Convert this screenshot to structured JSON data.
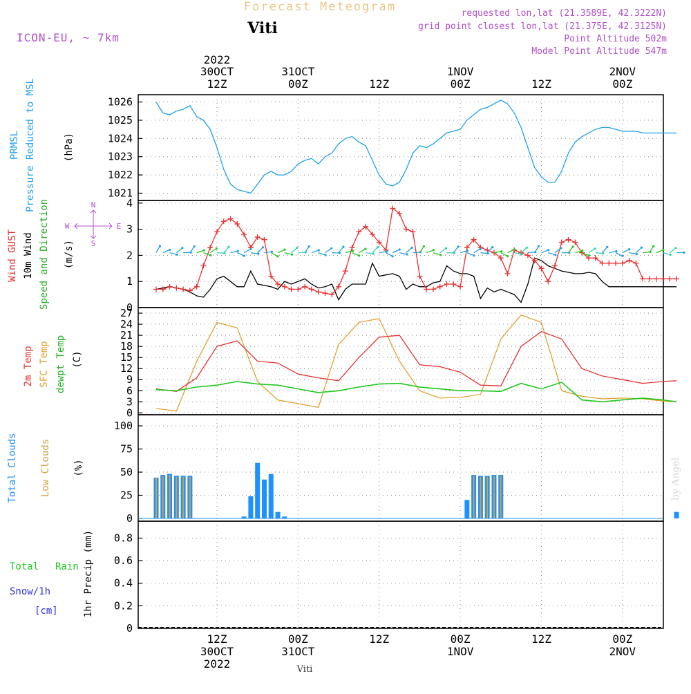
{
  "header": {
    "title": "Forecast Meteogram",
    "station": "Viti",
    "model": "ICON-EU, ~ 7km",
    "requested": "requested lon,lat (21.3589E, 42.3222N)",
    "gridpoint": "grid point closest lon,lat (21.375E, 42.3125N)",
    "point_alt": "Point Altitude 502m",
    "model_alt": "Model Point Altitude 547m",
    "watermark": "by Angel",
    "footer_station": "Viti"
  },
  "time_axis": {
    "top_year": "2022",
    "labels": [
      {
        "line1": "30OCT",
        "line2": "12Z"
      },
      {
        "line1": "31OCT",
        "line2": "00Z"
      },
      {
        "line1": "",
        "line2": "12Z"
      },
      {
        "line1": "1NOV",
        "line2": "00Z"
      },
      {
        "line1": "",
        "line2": "12Z"
      },
      {
        "line1": "2NOV",
        "line2": "00Z"
      }
    ],
    "bottom_labels": [
      {
        "hour": "12Z",
        "date": "30OCT",
        "year": "2022"
      },
      {
        "hour": "00Z",
        "date": "31OCT",
        "year": ""
      },
      {
        "hour": "12Z",
        "date": "",
        "year": ""
      },
      {
        "hour": "00Z",
        "date": "1NOV",
        "year": ""
      },
      {
        "hour": "12Z",
        "date": "",
        "year": ""
      },
      {
        "hour": "00Z",
        "date": "2NOV",
        "year": ""
      }
    ]
  },
  "panel_labels": {
    "pressure": {
      "a": "PRMSL",
      "b": "Pressure Reduced to MSL",
      "unit": "(hPa)"
    },
    "wind": {
      "a": "Wind GUST",
      "b": "10m Wind",
      "c": "Speed and Direction",
      "unit": "(m/s)",
      "compass_n": "N",
      "compass_s": "S",
      "compass_w": "W",
      "compass_e": "E"
    },
    "temp": {
      "a": "2m Temp",
      "b": "SFC Temp",
      "c": "dewpt Temp",
      "unit": "(C)"
    },
    "clouds": {
      "a": "Total Clouds",
      "b": "Low Clouds",
      "unit": "(%)"
    },
    "precip": {
      "a": "Total",
      "a2": "Rain",
      "b": "Snow/1h",
      "c": "[cm]",
      "unit": "1hr Precip (mm)"
    }
  },
  "colors": {
    "pressure": "#1ea0e8",
    "gust": "#e83030",
    "wind": "#000000",
    "temp2m": "#e83030",
    "sfc": "#e0a030",
    "dewpt": "#20c820",
    "total_clouds": "#1e90ff",
    "low_clouds": "#d4a040",
    "title": "#e8c888",
    "meta": "#b050c8"
  },
  "chart_data": [
    {
      "type": "line",
      "name": "pressure",
      "x_hours_from_30OCT_00Z": [
        3,
        4,
        5,
        6,
        7,
        8,
        9,
        10,
        11,
        12,
        13,
        14,
        15,
        16,
        17,
        18,
        19,
        20,
        21,
        22,
        23,
        24,
        25,
        26,
        27,
        28,
        29,
        30,
        31,
        32,
        33,
        34,
        35,
        36,
        37,
        38,
        39,
        40,
        41,
        42,
        43,
        44,
        45,
        46,
        47,
        48,
        49,
        50,
        51,
        52,
        53,
        54,
        55,
        56,
        57,
        58,
        59,
        60,
        61,
        62,
        63,
        64,
        65,
        66,
        67,
        68,
        69,
        70,
        71,
        72,
        73,
        74,
        75,
        76,
        77,
        78,
        79,
        80
      ],
      "series": [
        {
          "name": "PRMSL",
          "values": [
            1026.0,
            1025.4,
            1025.3,
            1025.5,
            1025.6,
            1025.8,
            1025.2,
            1025.0,
            1024.5,
            1023.5,
            1022.3,
            1021.5,
            1021.2,
            1021.1,
            1021.0,
            1021.5,
            1022.0,
            1022.2,
            1022.0,
            1022.0,
            1022.2,
            1022.6,
            1022.8,
            1022.9,
            1022.6,
            1023.0,
            1023.2,
            1023.7,
            1024.0,
            1024.1,
            1023.8,
            1023.6,
            1022.8,
            1022.0,
            1021.5,
            1021.4,
            1021.6,
            1022.3,
            1023.2,
            1023.6,
            1023.5,
            1023.7,
            1024.0,
            1024.3,
            1024.4,
            1024.5,
            1025.0,
            1025.3,
            1025.6,
            1025.7,
            1025.9,
            1026.1,
            1025.9,
            1025.4,
            1024.6,
            1023.5,
            1022.4,
            1021.9,
            1021.6,
            1021.6,
            1022.2,
            1023.2,
            1023.8,
            1024.1,
            1024.3,
            1024.5,
            1024.6,
            1024.6,
            1024.5,
            1024.4,
            1024.4,
            1024.4,
            1024.3,
            1024.3,
            1024.3,
            1024.3,
            1024.3,
            1024.3
          ]
        }
      ],
      "yticks": [
        1021,
        1022,
        1023,
        1024,
        1025,
        1026
      ],
      "ylim": [
        1020.6,
        1026.4
      ]
    },
    {
      "type": "line",
      "name": "wind",
      "x_hours_from_30OCT_00Z": [
        3,
        4,
        5,
        6,
        7,
        8,
        9,
        10,
        11,
        12,
        13,
        14,
        15,
        16,
        17,
        18,
        19,
        20,
        21,
        22,
        23,
        24,
        25,
        26,
        27,
        28,
        29,
        30,
        31,
        32,
        33,
        34,
        35,
        36,
        37,
        38,
        39,
        40,
        41,
        42,
        43,
        44,
        45,
        46,
        47,
        48,
        49,
        50,
        51,
        52,
        53,
        54,
        55,
        56,
        57,
        58,
        59,
        60,
        61,
        62,
        63,
        64,
        65,
        66,
        67,
        68,
        69,
        70,
        71,
        72,
        73,
        74,
        75,
        76,
        77,
        78,
        79,
        80
      ],
      "series": [
        {
          "name": "Wind GUST",
          "values": [
            0.7,
            0.7,
            0.8,
            0.75,
            0.7,
            0.65,
            0.8,
            1.6,
            2.3,
            2.9,
            3.3,
            3.4,
            3.2,
            2.8,
            2.3,
            2.7,
            2.6,
            1.2,
            0.9,
            0.8,
            0.7,
            0.7,
            0.8,
            0.7,
            0.6,
            0.55,
            0.5,
            0.8,
            1.4,
            2.3,
            2.9,
            3.1,
            2.8,
            2.5,
            2.2,
            3.8,
            3.6,
            3.0,
            2.9,
            1.2,
            0.7,
            0.7,
            0.8,
            0.9,
            0.9,
            0.8,
            2.3,
            2.6,
            2.3,
            2.2,
            2.1,
            1.9,
            1.3,
            2.2,
            2.1,
            2.0,
            1.8,
            1.5,
            1.0,
            1.6,
            2.5,
            2.6,
            2.5,
            2.1,
            1.9,
            1.9,
            1.7,
            1.7,
            1.7,
            1.7,
            1.8,
            1.7,
            1.1,
            1.1,
            1.1,
            1.1,
            1.1,
            1.1
          ]
        },
        {
          "name": "10m Wind",
          "values": [
            0.7,
            0.75,
            0.8,
            0.75,
            0.7,
            0.6,
            0.45,
            0.4,
            0.7,
            1.1,
            1.2,
            1.0,
            0.8,
            0.8,
            1.4,
            0.9,
            0.85,
            0.8,
            0.7,
            1.0,
            0.9,
            1.0,
            1.1,
            0.9,
            0.75,
            0.8,
            0.9,
            0.3,
            0.7,
            0.9,
            0.9,
            0.9,
            1.7,
            1.2,
            1.25,
            1.3,
            1.2,
            0.7,
            0.9,
            0.8,
            0.8,
            0.95,
            1.0,
            1.6,
            1.4,
            1.3,
            1.3,
            1.2,
            0.35,
            0.75,
            0.6,
            0.7,
            0.6,
            0.5,
            0.2,
            0.9,
            1.9,
            1.8,
            1.6,
            1.5,
            1.4,
            1.35,
            1.3,
            1.3,
            1.35,
            1.3,
            1.0,
            0.8,
            0.8,
            0.8,
            0.8,
            0.8,
            0.8,
            0.8,
            0.8,
            0.8,
            0.8,
            0.8
          ]
        }
      ],
      "yticks": [
        0,
        1,
        2,
        3,
        4
      ],
      "ylim": [
        0,
        4.1
      ]
    },
    {
      "type": "line",
      "name": "temperature",
      "x_hours_from_30OCT_00Z": [
        3,
        6,
        9,
        12,
        15,
        18,
        21,
        24,
        27,
        30,
        33,
        36,
        39,
        42,
        45,
        48,
        51,
        54,
        57,
        60,
        63,
        66,
        69,
        72,
        75,
        78,
        80
      ],
      "series": [
        {
          "name": "2m Temp",
          "values": [
            6.5,
            5.8,
            9.5,
            18.0,
            19.5,
            14.0,
            13.5,
            10.5,
            9.5,
            8.7,
            15.0,
            20.5,
            21.0,
            13.0,
            12.5,
            11.0,
            7.5,
            7.3,
            18.0,
            22.0,
            20.0,
            12.0,
            10.0,
            9.0,
            8.0,
            8.5,
            8.7
          ]
        },
        {
          "name": "SFC Temp",
          "values": [
            1.2,
            0.5,
            14.0,
            24.5,
            23.0,
            8.5,
            3.5,
            2.5,
            1.5,
            18.5,
            24.5,
            25.5,
            14.0,
            6.0,
            4.0,
            4.2,
            5.0,
            20.0,
            26.5,
            24.5,
            6.0,
            4.5,
            3.8,
            4.0,
            3.8,
            3.2,
            3.0
          ]
        },
        {
          "name": "dewpt Temp",
          "values": [
            6.3,
            6.0,
            7.0,
            7.5,
            8.5,
            7.8,
            7.5,
            6.5,
            5.5,
            6.0,
            7.0,
            7.8,
            8.0,
            7.0,
            6.5,
            6.0,
            6.0,
            5.8,
            8.0,
            6.5,
            8.3,
            3.5,
            3.0,
            3.5,
            4.0,
            3.5,
            3.0
          ]
        }
      ],
      "yticks": [
        0,
        3,
        6,
        9,
        12,
        15,
        18,
        21,
        24,
        27
      ],
      "ylim": [
        -0.5,
        28.5
      ]
    },
    {
      "type": "bar",
      "name": "clouds",
      "x_hours_from_30OCT_00Z": [
        3,
        4,
        5,
        6,
        7,
        8,
        16,
        17,
        18,
        19,
        20,
        21,
        22,
        49,
        50,
        51,
        52,
        53,
        54,
        55,
        80
      ],
      "series": [
        {
          "name": "Total Clouds",
          "values": [
            44,
            47,
            48,
            46,
            46,
            46,
            2,
            24,
            60,
            42,
            48,
            7,
            2,
            20,
            47,
            46,
            46,
            47,
            47,
            0,
            7
          ]
        },
        {
          "name": "Low Clouds",
          "values": [
            44,
            46,
            47,
            45,
            45,
            45,
            0,
            0,
            0,
            0,
            0,
            0,
            0,
            0,
            46,
            45,
            45,
            46,
            46,
            0,
            0
          ]
        }
      ],
      "yticks": [
        0,
        25,
        50,
        75,
        100
      ],
      "ylim": [
        -3,
        112
      ]
    },
    {
      "type": "bar",
      "name": "precipitation",
      "series": [
        {
          "name": "1hr Precip",
          "values": []
        }
      ],
      "yticks": [
        0,
        0.2,
        0.4,
        0.6,
        0.8
      ],
      "ylim": [
        0,
        0.95
      ]
    }
  ]
}
